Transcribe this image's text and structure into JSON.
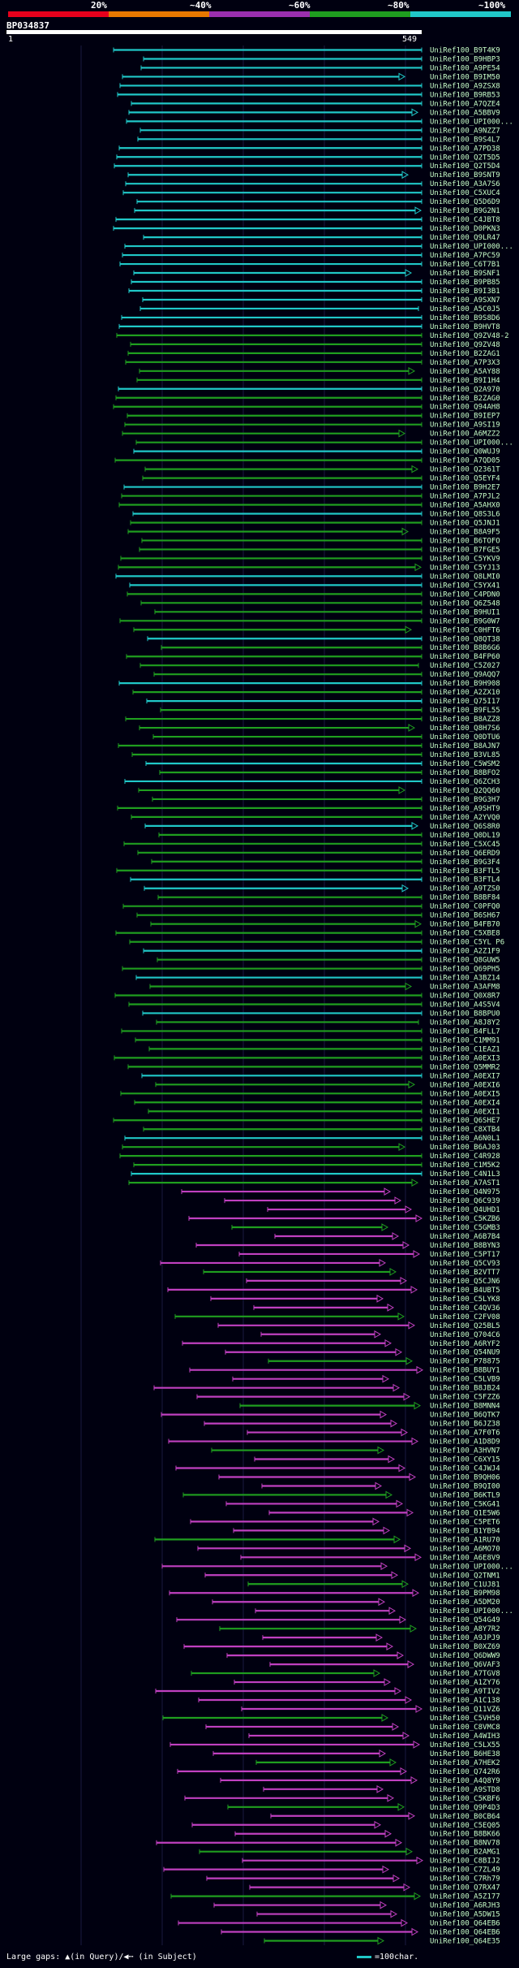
{
  "legend": {
    "labels": [
      "20%",
      "~40%",
      "~60%",
      "~80%",
      "~100%"
    ],
    "colors": [
      "#e8001c",
      "#e87800",
      "#9b2fae",
      "#1f9e1f",
      "#20c8c8"
    ]
  },
  "query": {
    "name": "BP034837",
    "start": "1",
    "end": "549"
  },
  "footer": {
    "large_gaps": "Large gaps: ▲(in Query)/◀⋯ (in Subject)",
    "scale_label": "=100char."
  },
  "hits": [
    "UniRef100_B9T4K9",
    "UniRef100_B9HBP3",
    "UniRef100_A9PE54",
    "UniRef100_B9IM50",
    "UniRef100_A9ZSX8",
    "UniRef100_B9RB53",
    "UniRef100_A7QZE4",
    "UniRef100_A5BBV9",
    "UniRef100_UPI000...",
    "UniRef100_A9NZZ7",
    "UniRef100_B9S4L7",
    "UniRef100_A7PD38",
    "UniRef100_Q2T5D5",
    "UniRef100_Q2T5D4",
    "UniRef100_B9SNT9",
    "UniRef100_A3A7S6",
    "UniRef100_C5XUC4",
    "UniRef100_Q5D6D9",
    "UniRef100_B9G2N1",
    "UniRef100_C4JBT8",
    "UniRef100_D0PKN3",
    "UniRef100_Q9LR47",
    "UniRef100_UPI000...",
    "UniRef100_A7PC59",
    "UniRef100_C6T7B1",
    "UniRef100_B9SNF1",
    "UniRef100_B9PB85",
    "UniRef100_B9I3B1",
    "UniRef100_A9SXN7",
    "UniRef100_A5C0J5",
    "UniRef100_B9S8D6",
    "UniRef100_B9HVT8",
    "UniRef100_Q9ZV48-2",
    "UniRef100_Q9ZV48",
    "UniRef100_B2ZAG1",
    "UniRef100_A7P3X3",
    "UniRef100_A5AY88",
    "UniRef100_B9I1H4",
    "UniRef100_Q2A970",
    "UniRef100_B2ZAG0",
    "UniRef100_Q94AH8",
    "UniRef100_B9IEP7",
    "UniRef100_A9SI19",
    "UniRef100_A6MZZ2",
    "UniRef100_UPI000...",
    "UniRef100_Q0WUJ9",
    "UniRef100_A7QD05",
    "UniRef100_Q2361T",
    "UniRef100_Q5EYF4",
    "UniRef100_B9H2E7",
    "UniRef100_A7PJL2",
    "UniRef100_A5AHX0",
    "UniRef100_Q8S3L6",
    "UniRef100_Q5JNJ1",
    "UniRef100_B8A9F5",
    "UniRef100_B6TOFO",
    "UniRef100_B7FGE5",
    "UniRef100_C5YKV9",
    "UniRef100_C5YJ13",
    "UniRef100_Q8LMI0",
    "UniRef100_C5YX41",
    "UniRef100_C4PDN0",
    "UniRef100_Q6Z548",
    "UniRef100_B9HUI1",
    "UniRef100_B9G0W7",
    "UniRef100_C0HFT6",
    "UniRef100_Q8QT38",
    "UniRef100_B8B6G6",
    "UniRef100_B4FP60",
    "UniRef100_C5Z027",
    "UniRef100_Q9AQQ7",
    "UniRef100_B9H908",
    "UniRef100_A2ZX10",
    "UniRef100_Q75I17",
    "UniRef100_B9FL55",
    "UniRef100_B8AZZ8",
    "UniRef100_Q8H7S6",
    "UniRef100_Q0DTU6",
    "UniRef100_B8AJN7",
    "UniRef100_B3VL85",
    "UniRef100_C5WSM2",
    "UniRef100_B8BFO2",
    "UniRef100_Q6ZCH3",
    "UniRef100_Q2QQ60",
    "UniRef100_B9G3H7",
    "UniRef100_A9SHT9",
    "UniRef100_A2YVQ0",
    "UniRef100_Q6S8R0",
    "UniRef100_Q0DL19",
    "UniRef100_C5XC45",
    "UniRef100_Q6ERD9",
    "UniRef100_B9G3F4",
    "UniRef100_B3FTL5",
    "UniRef100_B3FTL4",
    "UniRef100_A9TZS0",
    "UniRef100_B8BF84",
    "UniRef100_C0PFQ0",
    "UniRef100_B6SH67",
    "UniRef100_B4FB70",
    "UniRef100_C5XBE8",
    "UniRef100_C5YL P6",
    "UniRef100_A2Z1F9",
    "UniRef100_Q8GUW5",
    "UniRef100_Q69PH5",
    "UniRef100_A3BZ14",
    "UniRef100_A3AFM8",
    "UniRef100_Q0X8R7",
    "UniRef100_A4S5V4",
    "UniRef100_B8BPU0",
    "UniRef100_A8J8Y2",
    "UniRef100_B4FLL7",
    "UniRef100_C1MM91",
    "UniRef100_C1EAZ1",
    "UniRef100_A0EXI3",
    "UniRef100_Q5MMR2",
    "UniRef100_A0EXI7",
    "UniRef100_A0EXI6",
    "UniRef100_A0EXI5",
    "UniRef100_A0EXI4",
    "UniRef100_A0EXI1",
    "UniRef100_Q6SHE7",
    "UniRef100_C8XTB4",
    "UniRef100_A6N0L1",
    "UniRef100_B6AJ03",
    "UniRef100_C4R928",
    "UniRef100_C1M5K2",
    "UniRef100_C4N1L3",
    "UniRef100_A7AST1",
    "UniRef100_Q4N975",
    "UniRef100_Q6C939",
    "UniRef100_Q4UHD1",
    "UniRef100_C5KZB6",
    "UniRef100_C5GMB3",
    "UniRef100_A6B7B4",
    "UniRef100_B8BYN3",
    "UniRef100_C5PT17",
    "UniRef100_Q5CV93",
    "UniRef100_B2VTT7",
    "UniRef100_Q5CJN6",
    "UniRef100_B4UBT5",
    "UniRef100_C5LYK8",
    "UniRef100_C4QV36",
    "UniRef100_C2FV08",
    "UniRef100_Q25BL5",
    "UniRef100_Q704C6",
    "UniRef100_A6RYF2",
    "UniRef100_Q54NU9",
    "UniRef100_P78875",
    "UniRef100_B8BUY1",
    "UniRef100_C5LVB9",
    "UniRef100_B8JB24",
    "UniRef100_C5FZZ6",
    "UniRef100_B8MNN4",
    "UniRef100_B6QTK7",
    "UniRef100_B6JZ38",
    "UniRef100_A7F0T6",
    "UniRef100_A1D8D9",
    "UniRef100_A3HVN7",
    "UniRef100_C6XY15",
    "UniRef100_C4JWJ4",
    "UniRef100_B9QH06",
    "UniRef100_B9QI00",
    "UniRef100_B6KTL9",
    "UniRef100_C5KG41",
    "UniRef100_Q1E5W6",
    "UniRef100_C5PET6",
    "UniRef100_B1YB94",
    "UniRef100_A1RU70",
    "UniRef100_A6MO70",
    "UniRef100_A6E8V9",
    "UniRef100_UPI000...",
    "UniRef100_Q2TNM1",
    "UniRef100_C1UJ81",
    "UniRef100_B9PM98",
    "UniRef100_A5DM20",
    "UniRef100_UPI000...",
    "UniRef100_Q54G49",
    "UniRef100_A8Y7R2",
    "UniRef100_A9JPJ9",
    "UniRef100_B0XZ69",
    "UniRef100_Q6DWW9",
    "UniRef100_Q6VAF3",
    "UniRef100_A7TGV8",
    "UniRef100_A1ZY76",
    "UniRef100_A9TIV2",
    "UniRef100_A1C138",
    "UniRef100_Q11VZ6",
    "UniRef100_C5VH50",
    "UniRef100_C8VMC8",
    "UniRef100_A4WIH3",
    "UniRef100_C5LX55",
    "UniRef100_B6HE38",
    "UniRef100_A7HEK2",
    "UniRef100_Q742R6",
    "UniRef100_A4Q8Y9",
    "UniRef100_A9STD8",
    "UniRef100_C5KBF6",
    "UniRef100_Q9P4D3",
    "UniRef100_B0CB64",
    "UniRef100_C5EQ05",
    "UniRef100_B8BK66",
    "UniRef100_B8NV78",
    "UniRef100_B2AMG1",
    "UniRef100_C8BIJ2",
    "UniRef100_C7ZL49",
    "UniRef100_C7Rh79",
    "UniRef100_Q7RX47",
    "UniRef100_A5Z177",
    "UniRef100_A6RJH3",
    "UniRef100_A5DW15",
    "UniRef100_Q64EB6",
    "UniRef100_Q64EB6",
    "UniRef100_Q64E35"
  ]
}
